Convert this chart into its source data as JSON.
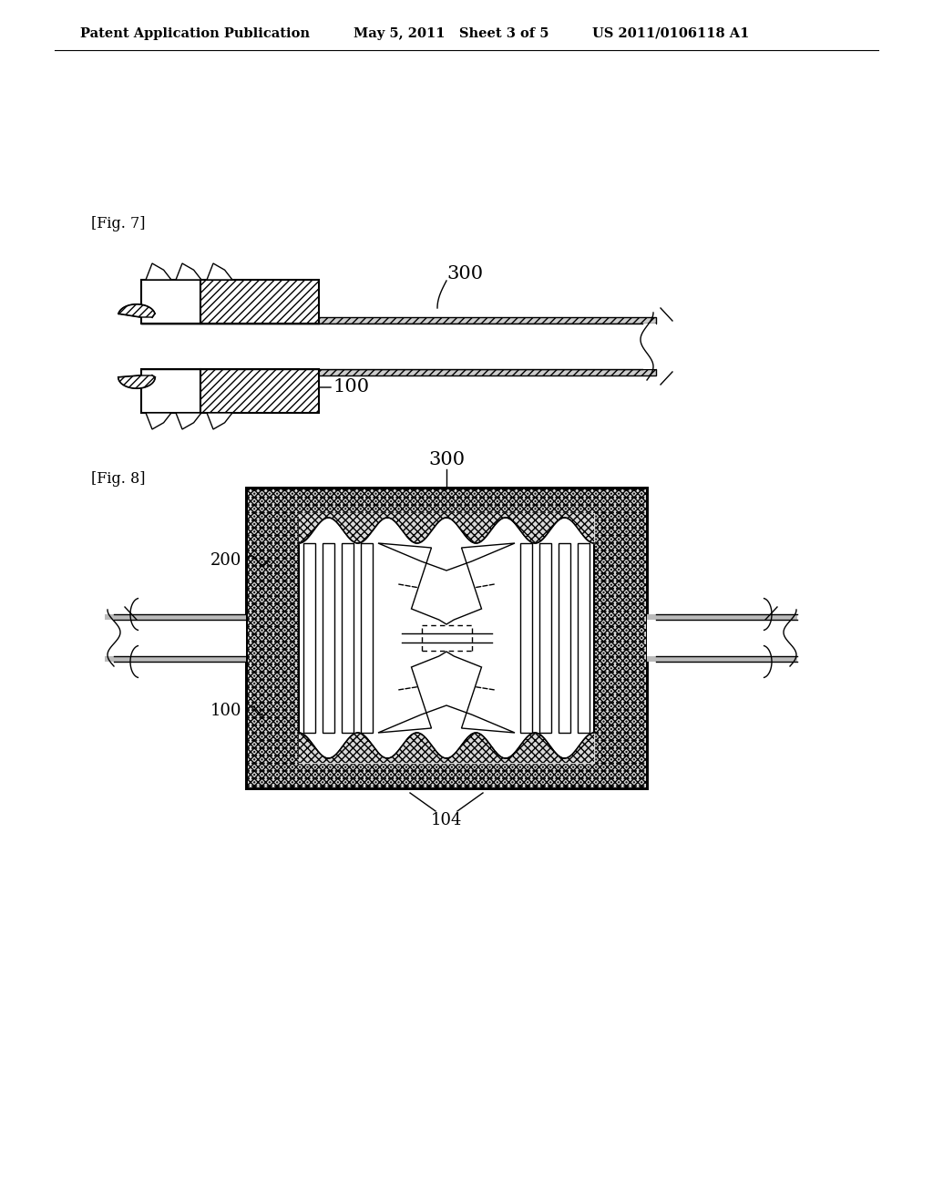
{
  "header_left": "Patent Application Publication",
  "header_mid": "May 5, 2011   Sheet 3 of 5",
  "header_right": "US 2011/0106118 A1",
  "fig7_label": "[Fig. 7]",
  "fig8_label": "[Fig. 8]",
  "label_300_fig7": "300",
  "label_100_fig7": "100",
  "label_300_fig8": "300",
  "label_200_fig8": "200",
  "label_100_fig8": "100",
  "label_104_fig8": "104",
  "bg_color": "#ffffff",
  "line_color": "#000000"
}
